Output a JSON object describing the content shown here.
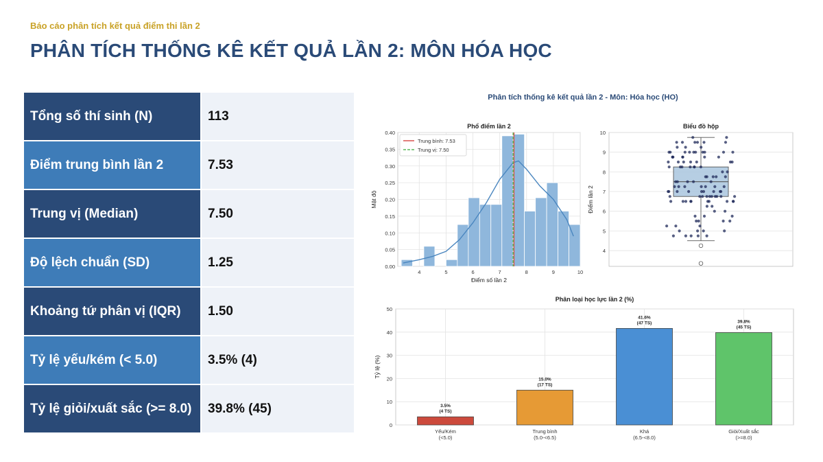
{
  "header": {
    "kicker": "Báo cáo phân tích kết quả điểm thi lần 2",
    "title": "PHÂN TÍCH THỐNG KÊ KẾT QUẢ LẦN 2: MÔN HÓA HỌC"
  },
  "stats": [
    {
      "label": "Tổng số thí sinh (N)",
      "value": "113"
    },
    {
      "label": "Điểm trung bình lần 2",
      "value": "7.53"
    },
    {
      "label": "Trung vị (Median)",
      "value": "7.50"
    },
    {
      "label": "Độ lệch chuẩn (SD)",
      "value": "1.25"
    },
    {
      "label": "Khoảng tứ phân vị (IQR)",
      "value": "1.50"
    },
    {
      "label": "Tỷ lệ yếu/kém (< 5.0)",
      "value": "3.5% (4)"
    },
    {
      "label": "Tỷ lệ giỏi/xuất sắc (>= 8.0)",
      "value": "39.8% (45)"
    }
  ],
  "figure_title": "Phân tích thống kê kết quả lần 2 - Môn: Hóa học (HO)",
  "colors": {
    "dark_row": "#2a4a77",
    "light_row": "#3e7cb8",
    "hist": "#8fb7dc",
    "kde": "#4a86bf",
    "mean": "#d9534f",
    "median": "#5cb85c",
    "box": "#a9c6de",
    "dots": "#1f2a5a",
    "cat": [
      "#cc4a3c",
      "#e69a35",
      "#4a8fd4",
      "#5fc46a"
    ]
  },
  "chart_data": [
    {
      "type": "bar",
      "title": "Phổ điểm lần 2",
      "xlabel": "Điểm số lần 2",
      "ylabel": "Mật độ",
      "xlim": [
        3.2,
        10
      ],
      "ylim": [
        0,
        0.4
      ],
      "xticks": [
        4,
        5,
        6,
        7,
        8,
        9,
        10
      ],
      "yticks": [
        0.0,
        0.05,
        0.1,
        0.15,
        0.2,
        0.25,
        0.3,
        0.35,
        0.4
      ],
      "bins": [
        {
          "x0": 3.33,
          "x1": 3.75,
          "value": 0.02
        },
        {
          "x0": 3.75,
          "x1": 4.17,
          "value": 0.0
        },
        {
          "x0": 4.17,
          "x1": 4.58,
          "value": 0.06
        },
        {
          "x0": 4.58,
          "x1": 5.0,
          "value": 0.0
        },
        {
          "x0": 5.0,
          "x1": 5.42,
          "value": 0.02
        },
        {
          "x0": 5.42,
          "x1": 5.83,
          "value": 0.125
        },
        {
          "x0": 5.83,
          "x1": 6.25,
          "value": 0.205
        },
        {
          "x0": 6.25,
          "x1": 6.67,
          "value": 0.185
        },
        {
          "x0": 6.67,
          "x1": 7.08,
          "value": 0.185
        },
        {
          "x0": 7.08,
          "x1": 7.5,
          "value": 0.39
        },
        {
          "x0": 7.5,
          "x1": 7.92,
          "value": 0.395
        },
        {
          "x0": 7.92,
          "x1": 8.33,
          "value": 0.165
        },
        {
          "x0": 8.33,
          "x1": 8.75,
          "value": 0.205
        },
        {
          "x0": 8.75,
          "x1": 9.17,
          "value": 0.25
        },
        {
          "x0": 9.17,
          "x1": 9.58,
          "value": 0.165
        },
        {
          "x0": 9.58,
          "x1": 10.0,
          "value": 0.125
        }
      ],
      "kde": [
        [
          3.4,
          0.01
        ],
        [
          4.0,
          0.02
        ],
        [
          4.5,
          0.03
        ],
        [
          5.0,
          0.045
        ],
        [
          5.5,
          0.08
        ],
        [
          6.0,
          0.13
        ],
        [
          6.5,
          0.19
        ],
        [
          7.0,
          0.26
        ],
        [
          7.5,
          0.31
        ],
        [
          7.7,
          0.315
        ],
        [
          8.0,
          0.29
        ],
        [
          8.5,
          0.24
        ],
        [
          9.0,
          0.2
        ],
        [
          9.5,
          0.14
        ],
        [
          9.75,
          0.09
        ]
      ],
      "mean": 7.53,
      "median": 7.5,
      "legend": [
        "Trung bình: 7.53",
        "Trung vị: 7.50"
      ]
    },
    {
      "type": "box",
      "title": "Biểu đồ hộp",
      "ylabel": "Điểm lần 2",
      "ylim": [
        3.2,
        10
      ],
      "yticks": [
        4,
        5,
        6,
        7,
        8,
        9,
        10
      ],
      "q1": 6.75,
      "median": 7.5,
      "q3": 8.25,
      "whisker_low": 4.5,
      "whisker_high": 9.75,
      "outliers": [
        4.25,
        3.35
      ]
    },
    {
      "type": "bar",
      "title": "Phân loại học lực lần 2 (%)",
      "ylabel": "Tỷ lệ (%)",
      "ylim": [
        0,
        50
      ],
      "yticks": [
        0,
        10,
        20,
        30,
        40,
        50
      ],
      "categories": [
        "Yếu/Kém\n(<5.0)",
        "Trung bình\n(5.0-<6.5)",
        "Khá\n(6.5-<8.0)",
        "Giỏi/Xuất sắc\n(>=8.0)"
      ],
      "values": [
        3.5,
        15.0,
        41.6,
        39.8
      ],
      "labels": [
        "3.5%\n(4 TS)",
        "15.0%\n(17 TS)",
        "41.6%\n(47 TS)",
        "39.8%\n(45 TS)"
      ]
    }
  ]
}
